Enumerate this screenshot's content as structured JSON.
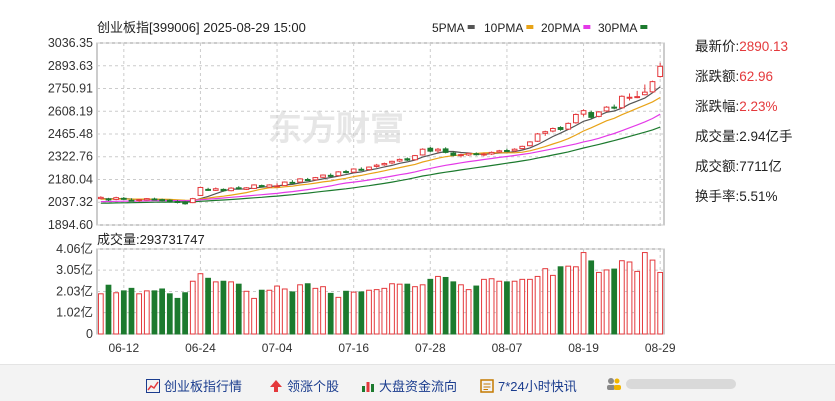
{
  "chart_data": {
    "type": "candlestick",
    "title": "创业板指[399006] 2025-08-29 15:00",
    "ma_legend": [
      {
        "label": "5PMA",
        "color": "#555555"
      },
      {
        "label": "10PMA",
        "color": "#e8a317"
      },
      {
        "label": "20PMA",
        "color": "#e43ae8"
      },
      {
        "label": "30PMA",
        "color": "#1c7a2e"
      }
    ],
    "price_axis": {
      "ticks": [
        "3036.35",
        "2893.63",
        "2750.91",
        "2608.19",
        "2465.48",
        "2322.76",
        "2180.04",
        "2037.32",
        "1894.60"
      ],
      "ylim": [
        1894.6,
        3036.35
      ]
    },
    "volume_label": "成交量:293731747",
    "volume_axis": {
      "ticks": [
        "4.06亿",
        "3.05亿",
        "2.03亿",
        "1.02亿",
        "0"
      ],
      "ylim": [
        0,
        4.06
      ],
      "unit": "亿"
    },
    "x_ticks": [
      {
        "label": "06-12",
        "index": 3
      },
      {
        "label": "06-24",
        "index": 13
      },
      {
        "label": "07-04",
        "index": 23
      },
      {
        "label": "07-16",
        "index": 33
      },
      {
        "label": "07-28",
        "index": 43
      },
      {
        "label": "08-07",
        "index": 53
      },
      {
        "label": "08-19",
        "index": 63
      },
      {
        "label": "08-29",
        "index": 73
      }
    ],
    "ohlc": [
      [
        2060,
        2075,
        2055,
        2068
      ],
      [
        2058,
        2065,
        2045,
        2052
      ],
      [
        2055,
        2072,
        2050,
        2066
      ],
      [
        2062,
        2070,
        2052,
        2058
      ],
      [
        2050,
        2062,
        2042,
        2046
      ],
      [
        2048,
        2058,
        2040,
        2054
      ],
      [
        2052,
        2064,
        2048,
        2060
      ],
      [
        2058,
        2066,
        2050,
        2056
      ],
      [
        2054,
        2060,
        2044,
        2050
      ],
      [
        2050,
        2056,
        2040,
        2046
      ],
      [
        2042,
        2050,
        2030,
        2036
      ],
      [
        2034,
        2046,
        2022,
        2030
      ],
      [
        2035,
        2065,
        2032,
        2060
      ],
      [
        2080,
        2135,
        2078,
        2130
      ],
      [
        2118,
        2128,
        2108,
        2114
      ],
      [
        2112,
        2130,
        2108,
        2122
      ],
      [
        2118,
        2124,
        2104,
        2110
      ],
      [
        2110,
        2132,
        2106,
        2126
      ],
      [
        2128,
        2138,
        2118,
        2124
      ],
      [
        2118,
        2132,
        2114,
        2128
      ],
      [
        2124,
        2150,
        2120,
        2146
      ],
      [
        2142,
        2148,
        2130,
        2136
      ],
      [
        2132,
        2150,
        2128,
        2146
      ],
      [
        2140,
        2156,
        2134,
        2140
      ],
      [
        2142,
        2168,
        2140,
        2164
      ],
      [
        2162,
        2176,
        2156,
        2160
      ],
      [
        2164,
        2188,
        2160,
        2184
      ],
      [
        2180,
        2190,
        2172,
        2176
      ],
      [
        2178,
        2196,
        2174,
        2192
      ],
      [
        2194,
        2212,
        2190,
        2208
      ],
      [
        2206,
        2218,
        2196,
        2202
      ],
      [
        2204,
        2232,
        2200,
        2228
      ],
      [
        2230,
        2240,
        2218,
        2224
      ],
      [
        2226,
        2250,
        2222,
        2246
      ],
      [
        2244,
        2256,
        2234,
        2240
      ],
      [
        2242,
        2262,
        2238,
        2258
      ],
      [
        2262,
        2278,
        2254,
        2270
      ],
      [
        2272,
        2286,
        2266,
        2280
      ],
      [
        2284,
        2298,
        2276,
        2294
      ],
      [
        2296,
        2312,
        2290,
        2306
      ],
      [
        2310,
        2318,
        2296,
        2302
      ],
      [
        2304,
        2334,
        2300,
        2330
      ],
      [
        2334,
        2376,
        2330,
        2370
      ],
      [
        2376,
        2384,
        2352,
        2358
      ],
      [
        2360,
        2378,
        2346,
        2370
      ],
      [
        2372,
        2382,
        2344,
        2350
      ],
      [
        2346,
        2356,
        2326,
        2332
      ],
      [
        2330,
        2342,
        2318,
        2336
      ],
      [
        2334,
        2348,
        2328,
        2344
      ],
      [
        2342,
        2350,
        2330,
        2338
      ],
      [
        2336,
        2348,
        2326,
        2340
      ],
      [
        2340,
        2356,
        2334,
        2350
      ],
      [
        2352,
        2366,
        2346,
        2360
      ],
      [
        2362,
        2374,
        2352,
        2356
      ],
      [
        2360,
        2376,
        2354,
        2370
      ],
      [
        2374,
        2392,
        2370,
        2388
      ],
      [
        2392,
        2420,
        2388,
        2416
      ],
      [
        2420,
        2472,
        2416,
        2466
      ],
      [
        2470,
        2486,
        2454,
        2480
      ],
      [
        2484,
        2506,
        2476,
        2500
      ],
      [
        2506,
        2514,
        2486,
        2494
      ],
      [
        2496,
        2538,
        2492,
        2532
      ],
      [
        2536,
        2594,
        2530,
        2588
      ],
      [
        2590,
        2620,
        2576,
        2612
      ],
      [
        2600,
        2612,
        2560,
        2570
      ],
      [
        2576,
        2610,
        2570,
        2604
      ],
      [
        2610,
        2640,
        2604,
        2634
      ],
      [
        2634,
        2650,
        2620,
        2628
      ],
      [
        2630,
        2708,
        2626,
        2702
      ],
      [
        2690,
        2720,
        2676,
        2696
      ],
      [
        2696,
        2736,
        2690,
        2700
      ],
      [
        2712,
        2776,
        2708,
        2728
      ],
      [
        2730,
        2800,
        2724,
        2794
      ],
      [
        2826,
        2912,
        2820,
        2890
      ]
    ],
    "volume": [
      1.92,
      2.33,
      1.97,
      2.06,
      2.18,
      1.92,
      2.06,
      2.06,
      2.15,
      1.92,
      1.7,
      1.97,
      2.52,
      2.88,
      2.66,
      2.49,
      2.52,
      2.49,
      2.38,
      2.04,
      1.7,
      2.09,
      2.09,
      2.29,
      2.15,
      2.01,
      2.35,
      2.4,
      2.18,
      2.26,
      1.94,
      1.75,
      2.04,
      2.0,
      2.01,
      2.09,
      2.12,
      2.18,
      2.4,
      2.38,
      2.38,
      2.26,
      2.35,
      2.61,
      2.75,
      2.7,
      2.49,
      2.35,
      2.12,
      2.29,
      2.61,
      2.64,
      2.52,
      2.49,
      2.52,
      2.61,
      2.61,
      2.75,
      3.12,
      2.8,
      3.21,
      3.24,
      3.21,
      3.89,
      3.49,
      2.94,
      3.06,
      3.1,
      3.5,
      3.44,
      2.99,
      3.89,
      3.53,
      2.94
    ],
    "ma_lines_start": {
      "5PMA": 2058,
      "10PMA": 2056,
      "20PMA": 2040,
      "30PMA": 2030
    }
  },
  "stats": [
    {
      "label": "最新价:",
      "value": "2890.13",
      "highlight": true
    },
    {
      "label": "涨跌额:",
      "value": "62.96",
      "highlight": true
    },
    {
      "label": "涨跌幅:",
      "value": "2.23%",
      "highlight": true
    },
    {
      "label": "成交量:",
      "value": "2.94亿手",
      "highlight": false
    },
    {
      "label": "成交额:",
      "value": "7711亿",
      "highlight": false
    },
    {
      "label": "换手率:",
      "value": "5.51%",
      "highlight": false
    }
  ],
  "watermark": "东方财富",
  "footer_links": [
    {
      "label": "创业板指行情",
      "icon": "line-chart-icon"
    },
    {
      "label": "领涨个股",
      "icon": "up-arrow-icon"
    },
    {
      "label": "大盘资金流向",
      "icon": "bar-chart-icon"
    },
    {
      "label": "7*24小时快讯",
      "icon": "news-icon"
    }
  ],
  "colors": {
    "up": "#e4393c",
    "down": "#1c7a2e",
    "grid": "#cccccc"
  }
}
